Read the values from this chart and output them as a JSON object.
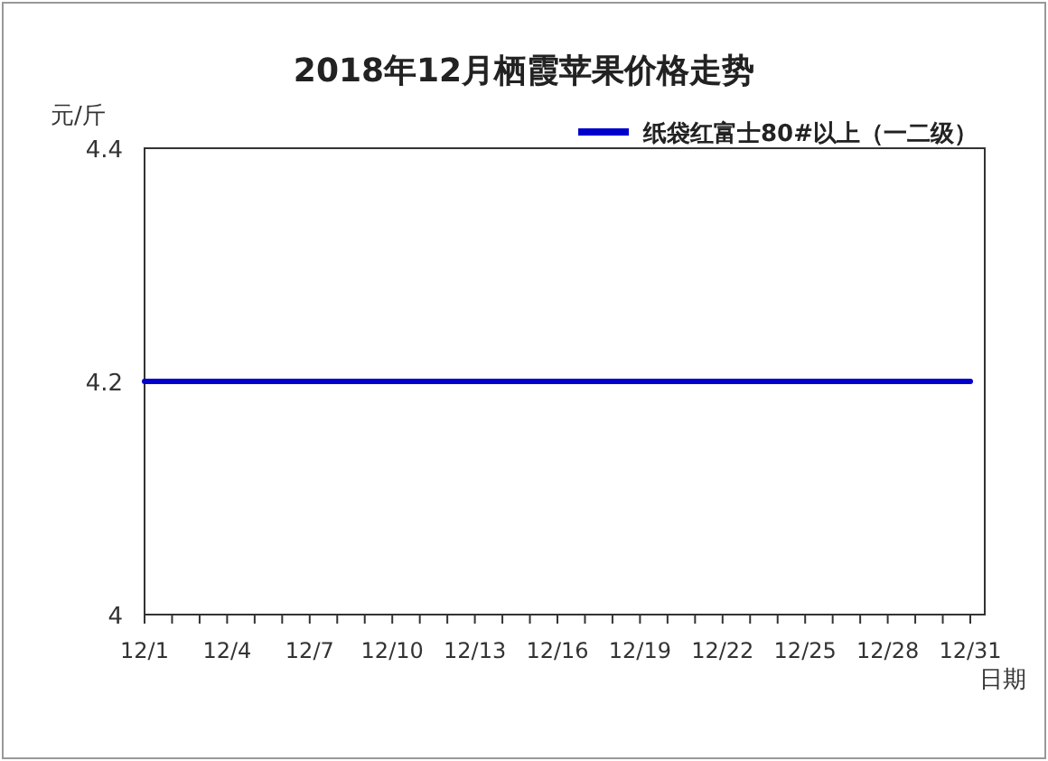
{
  "chart_data": {
    "type": "line",
    "title": "2018年12月栖霞苹果价格走势",
    "ylabel": "元/斤",
    "xlabel": "日期",
    "categories": [
      "12/1",
      null,
      null,
      "12/4",
      null,
      null,
      "12/7",
      null,
      null,
      "12/10",
      null,
      null,
      "12/13",
      null,
      null,
      "12/16",
      null,
      null,
      "12/19",
      null,
      null,
      "12/22",
      null,
      null,
      "12/25",
      null,
      null,
      "12/28",
      null,
      null,
      "12/31"
    ],
    "series": [
      {
        "name": "纸袋红富士80#以上（一二级）",
        "color": "#0000cc",
        "values": [
          4.2,
          4.2,
          4.2,
          4.2,
          4.2,
          4.2,
          4.2,
          4.2,
          4.2,
          4.2,
          4.2,
          4.2,
          4.2,
          4.2,
          4.2,
          4.2,
          4.2,
          4.2,
          4.2,
          4.2,
          4.2,
          4.2,
          4.2,
          4.2,
          4.2,
          4.2,
          4.2,
          4.2,
          4.2,
          4.2,
          4.2
        ]
      }
    ],
    "ylim": [
      4,
      4.4
    ],
    "yticks": [
      4,
      4.2,
      4.4
    ],
    "legend": "top right",
    "grid": false,
    "marker": "none",
    "line_style": "solid"
  }
}
